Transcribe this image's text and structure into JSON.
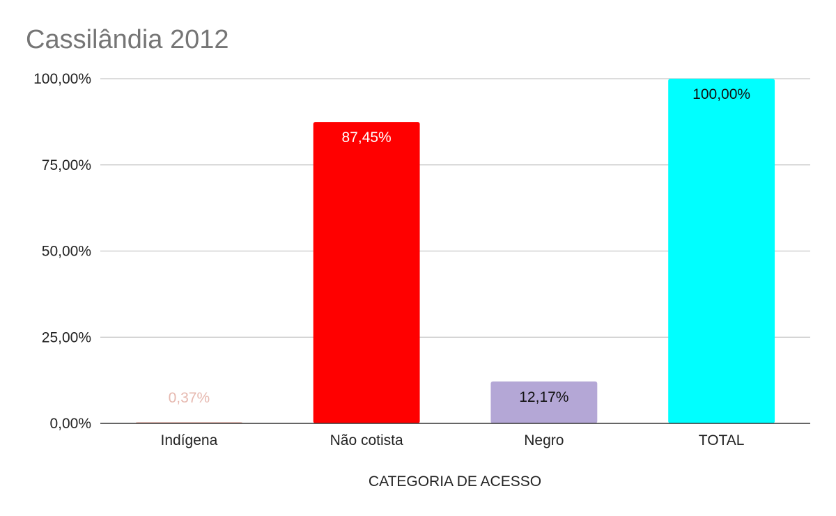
{
  "chart_data": {
    "type": "bar",
    "title": "Cassilândia 2012",
    "xlabel": "CATEGORIA DE ACESSO",
    "ylabel": "",
    "categories": [
      "Indígena",
      "Não cotista",
      "Negro",
      "TOTAL"
    ],
    "values": [
      0.37,
      87.45,
      12.17,
      100.0
    ],
    "value_labels": [
      "0,37%",
      "87,45%",
      "12,17%",
      "100,00%"
    ],
    "colors": [
      "#e6b8af",
      "#ff0000",
      "#b4a7d6",
      "#00ffff"
    ],
    "label_colors": [
      "#e6b8af",
      "#ffffff",
      "#111111",
      "#111111"
    ],
    "ylim": [
      0,
      100
    ],
    "yticks": [
      0,
      25,
      50,
      75,
      100
    ],
    "ytick_labels": [
      "0,00%",
      "25,00%",
      "50,00%",
      "75,00%",
      "100,00%"
    ],
    "grid": true,
    "legend": "none"
  }
}
